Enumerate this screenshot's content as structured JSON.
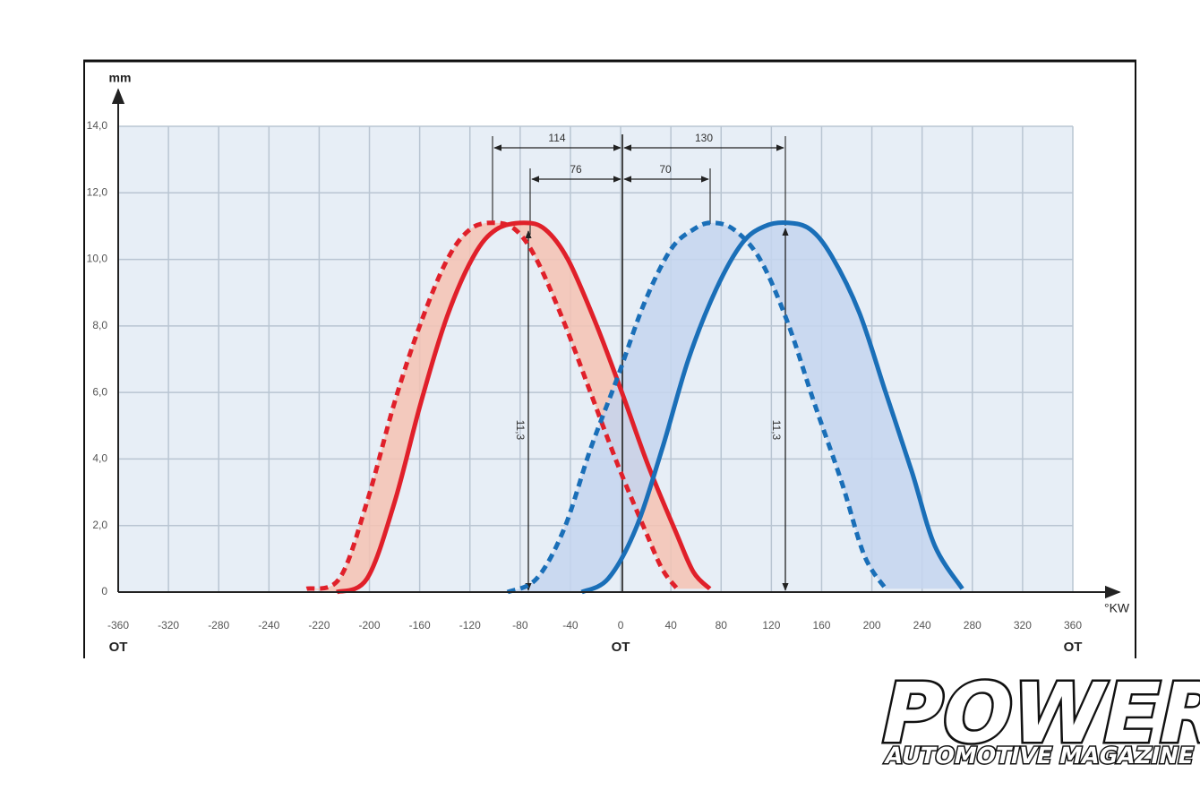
{
  "chart_data": {
    "type": "line",
    "y_label": "mm",
    "x_label": "°KW",
    "x_marks": [
      {
        "value": -360,
        "label": "OT"
      },
      {
        "value": 0,
        "label": "OT"
      },
      {
        "value": 360,
        "label": "OT"
      }
    ],
    "xlim": [
      -360,
      360
    ],
    "xticks": [
      -360,
      -320,
      -280,
      -240,
      -220,
      -200,
      -160,
      -120,
      -80,
      -40,
      0,
      40,
      80,
      120,
      160,
      200,
      240,
      280,
      320,
      360
    ],
    "ylim": [
      0,
      14
    ],
    "yticks": [
      0,
      {
        "value": 2,
        "label": "2,0"
      },
      {
        "value": 4,
        "label": "4,0"
      },
      {
        "value": 6,
        "label": "6,0"
      },
      {
        "value": 8,
        "label": "8,0"
      },
      {
        "value": 10,
        "label": "10,0"
      },
      {
        "value": 12,
        "label": "12,0"
      },
      {
        "value": 14,
        "label": "14,0"
      }
    ],
    "grid": true,
    "series": [
      {
        "color": "#e0202a",
        "style": "dashed",
        "fill": "#f5c2b3",
        "x": [
          -225,
          -212,
          -201,
          -180,
          -159,
          -138,
          -120,
          -102,
          -84,
          -67,
          -45,
          -24,
          -2,
          19,
          33,
          45
        ],
        "values": [
          0.1,
          0.4,
          2.7,
          5.7,
          8.1,
          10.0,
          10.9,
          11.1,
          10.9,
          10.0,
          8.1,
          6.0,
          3.8,
          1.9,
          0.7,
          0.1
        ]
      },
      {
        "color": "#e0202a",
        "style": "solid",
        "x": [
          -213,
          -201,
          -180,
          -159,
          -138,
          -117,
          -99,
          -77,
          -60,
          -42,
          -20,
          1,
          22,
          44,
          58,
          71
        ],
        "values": [
          0.0,
          0.4,
          2.7,
          5.7,
          8.3,
          10.1,
          10.9,
          11.1,
          10.9,
          10.0,
          8.1,
          6.0,
          3.8,
          1.8,
          0.6,
          0.1
        ]
      },
      {
        "color": "#1a6fb8",
        "style": "dashed",
        "fill": "#c4d5ef",
        "x": [
          -90,
          -67,
          -45,
          -24,
          -2,
          19,
          40,
          58,
          72,
          90,
          111,
          133,
          154,
          176,
          194,
          211
        ],
        "values": [
          0.0,
          0.4,
          1.9,
          4.3,
          6.5,
          8.7,
          10.3,
          10.9,
          11.1,
          10.9,
          10.0,
          8.1,
          5.7,
          3.3,
          1.1,
          0.1
        ]
      },
      {
        "color": "#1a6fb8",
        "style": "solid",
        "x": [
          -31,
          -10,
          12,
          33,
          54,
          76,
          97,
          115,
          133,
          151,
          168,
          190,
          211,
          232,
          250,
          272
        ],
        "values": [
          0.0,
          0.4,
          1.9,
          4.3,
          7.0,
          9.1,
          10.5,
          11.0,
          11.1,
          10.9,
          10.1,
          8.4,
          6.0,
          3.6,
          1.4,
          0.1
        ]
      }
    ],
    "annotations": [
      "114",
      "130",
      "76",
      "70",
      "11,3",
      "11,3"
    ]
  },
  "logo": {
    "title": "POWER",
    "subtitle": "AUTOMOTIVE MAGAZINE"
  }
}
